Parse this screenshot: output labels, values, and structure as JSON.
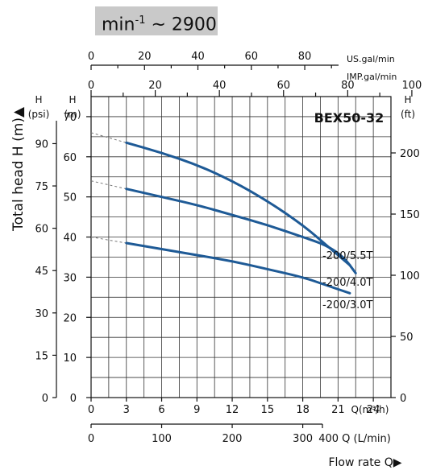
{
  "speed": {
    "base": "min",
    "exp": "-1",
    "value": " ~ 2900"
  },
  "chart_data": {
    "type": "line",
    "title": "BEX50-32",
    "ylabel": "Total head H (m)▲",
    "xlabel": "Flow rate Q▶",
    "x_axis_m3h": {
      "label": "Q(m³/h)",
      "ticks": [
        0,
        3,
        6,
        9,
        12,
        15,
        18,
        21,
        24
      ],
      "range": [
        0,
        25.5
      ]
    },
    "x_axis_lmin": {
      "label": "400 Q (L/min)",
      "ticks": [
        "0",
        "100",
        "200",
        "300"
      ]
    },
    "x_axis_us": {
      "label": "US.gal/min",
      "ticks": [
        "0",
        "20",
        "40",
        "60",
        "80"
      ]
    },
    "x_axis_imp": {
      "label": "IMP.gal/min",
      "ticks": [
        "0",
        "20",
        "40",
        "60",
        "80",
        "100"
      ]
    },
    "y_axis_m": {
      "unit": "H",
      "unit_sub": "(m)",
      "ticks": [
        0,
        10,
        20,
        30,
        40,
        50,
        60,
        70
      ],
      "range": [
        0,
        75
      ]
    },
    "y_axis_psi": {
      "unit": "H",
      "unit_sub": "(psi)",
      "ticks": [
        "0",
        "15",
        "30",
        "45",
        "60",
        "75",
        "90"
      ]
    },
    "y_axis_ft": {
      "unit": "H",
      "unit_sub": "(ft)",
      "ticks": [
        "0",
        "50",
        "100",
        "150",
        "200"
      ]
    },
    "series": [
      {
        "name": "-200/5.5T",
        "color": "#1e5a96",
        "x": [
          3,
          6,
          9,
          12,
          15,
          18,
          20,
          22
        ],
        "y": [
          63.5,
          61,
          58,
          54,
          49,
          43,
          38,
          33
        ],
        "shutoff": 66
      },
      {
        "name": "-200/4.0T",
        "color": "#1e5a96",
        "x": [
          3,
          6,
          9,
          12,
          15,
          18,
          20,
          21.5,
          22.5
        ],
        "y": [
          52,
          50,
          48,
          45.5,
          43,
          40,
          38,
          35,
          31
        ],
        "shutoff": 54
      },
      {
        "name": "-200/3.0T",
        "color": "#1e5a96",
        "x": [
          3,
          6,
          9,
          12,
          15,
          18,
          20,
          22
        ],
        "y": [
          38.5,
          37,
          35.5,
          34,
          32,
          30,
          28,
          26
        ],
        "shutoff": 40
      }
    ]
  }
}
